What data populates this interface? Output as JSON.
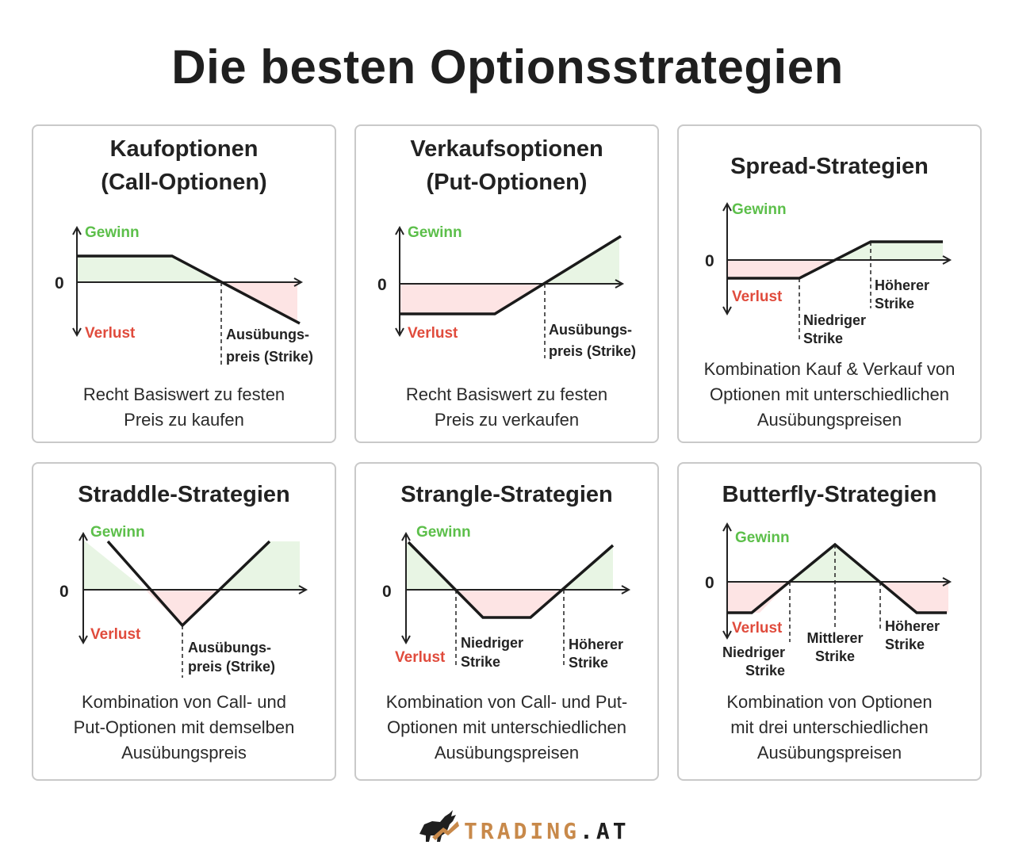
{
  "title": "Die besten Optionsstrategien",
  "labels": {
    "gain": "Gewinn",
    "loss": "Verlust",
    "zero": "0"
  },
  "cards": [
    {
      "title_lines": [
        "Kaufoptionen",
        "(Call-Optionen)"
      ],
      "strikes": [
        [
          "Ausübungs-",
          "preis (Strike)"
        ]
      ],
      "description_lines": [
        "Recht Basiswert zu festen",
        "Preis zu kaufen"
      ]
    },
    {
      "title_lines": [
        "Verkaufsoptionen",
        "(Put-Optionen)"
      ],
      "strikes": [
        [
          "Ausübungs-",
          "preis (Strike)"
        ]
      ],
      "description_lines": [
        "Recht Basiswert zu festen",
        "Preis zu verkaufen"
      ]
    },
    {
      "title_lines": [
        "Spread-Strategien"
      ],
      "strikes": [
        [
          "Niedriger",
          "Strike"
        ],
        [
          "Höherer",
          "Strike"
        ]
      ],
      "description_lines": [
        "Kombination Kauf & Verkauf von",
        "Optionen mit unterschiedlichen",
        "Ausübungspreisen"
      ]
    },
    {
      "title_lines": [
        "Straddle-Strategien"
      ],
      "strikes": [
        [
          "Ausübungs-",
          "preis (Strike)"
        ]
      ],
      "description_lines": [
        "Kombination von Call- und",
        "Put-Optionen mit demselben",
        "Ausübungspreis"
      ]
    },
    {
      "title_lines": [
        "Strangle-Strategien"
      ],
      "strikes": [
        [
          "Niedriger",
          "Strike"
        ],
        [
          "Höherer",
          "Strike"
        ]
      ],
      "description_lines": [
        "Kombination von Call- und Put-",
        "Optionen mit unterschiedlichen",
        "Ausübungspreisen"
      ]
    },
    {
      "title_lines": [
        "Butterfly-Strategien"
      ],
      "strikes": [
        [
          "Niedriger",
          "Strike"
        ],
        [
          "Mittlerer",
          "Strike"
        ],
        [
          "Höherer",
          "Strike"
        ]
      ],
      "description_lines": [
        "Kombination von Optionen",
        "mit drei unterschiedlichen",
        "Ausübungspreisen"
      ]
    }
  ],
  "logo": {
    "brand": "TRADING",
    "dot": ".",
    "suffix": "AT",
    "icon": "bull-icon",
    "colors": {
      "brand": "#c8894a",
      "dark": "#1f1f1f"
    }
  },
  "colors": {
    "gain": "#5cbf4a",
    "loss": "#e04b3c",
    "gain_fill": "#e8f5e4",
    "loss_fill": "#fde4e4",
    "border": "#c9c9c9"
  }
}
